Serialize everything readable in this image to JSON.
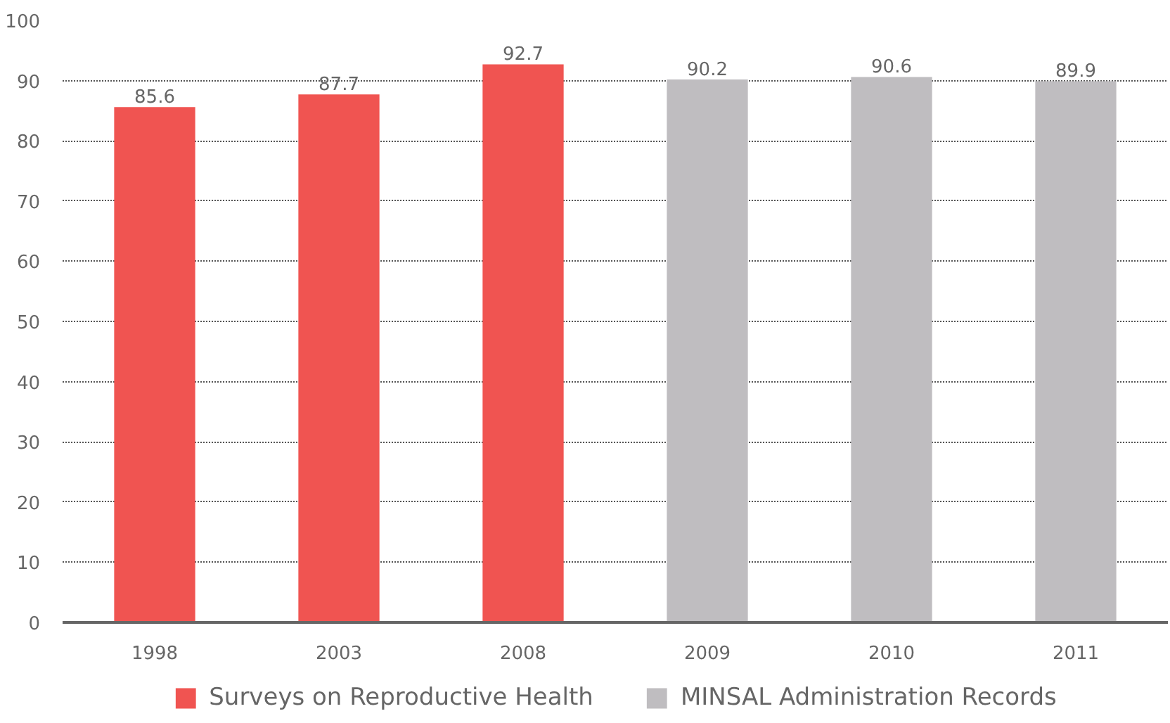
{
  "chart_data": {
    "type": "bar",
    "categories": [
      "1998",
      "2003",
      "2008",
      "2009",
      "2010",
      "2011"
    ],
    "series": [
      {
        "name": "Surveys on Reproductive Health",
        "color": "#f05451",
        "values": [
          85.6,
          87.7,
          92.7,
          null,
          null,
          null
        ]
      },
      {
        "name": "MINSAL Administration Records",
        "color": "#bfbdc0",
        "values": [
          null,
          null,
          null,
          90.2,
          90.6,
          89.9
        ]
      }
    ],
    "ylim": [
      0,
      100
    ],
    "yticks": [
      0,
      10,
      20,
      30,
      40,
      50,
      60,
      70,
      80,
      90,
      100
    ],
    "data_labels": true,
    "grid": "y",
    "legend": "bottom"
  }
}
